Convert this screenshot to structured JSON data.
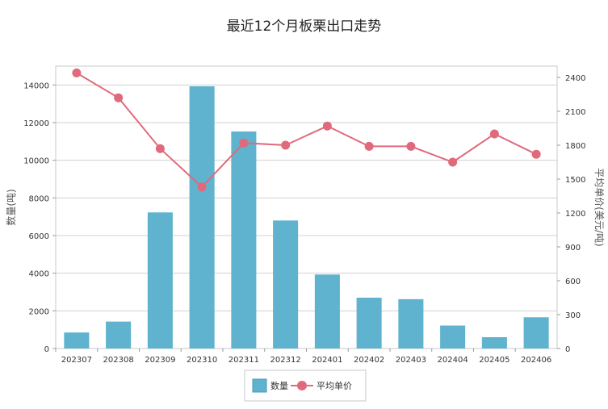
{
  "chart_data": {
    "type": "bar+line",
    "title": "最近12个月板栗出口走势",
    "categories": [
      "202307",
      "202308",
      "202309",
      "202310",
      "202311",
      "202312",
      "202401",
      "202402",
      "202403",
      "202404",
      "202405",
      "202406"
    ],
    "series": [
      {
        "name": "数量",
        "type": "bar",
        "axis": "left",
        "color": "#5fb3ce",
        "values": [
          850,
          1430,
          7230,
          13930,
          11530,
          6800,
          3930,
          2700,
          2620,
          1220,
          600,
          1660
        ]
      },
      {
        "name": "平均单价",
        "type": "line",
        "axis": "right",
        "color": "#e06a7c",
        "values": [
          2440,
          2220,
          1770,
          1430,
          1820,
          1800,
          1970,
          1790,
          1790,
          1650,
          1900,
          1720
        ]
      }
    ],
    "ylabel_left": "数量(吨)",
    "ylabel_right": "平均单价(美元/吨)",
    "ylim_left": [
      0,
      15000
    ],
    "yticks_left": [
      0,
      2000,
      4000,
      6000,
      8000,
      10000,
      12000,
      14000
    ],
    "ylim_right": [
      0,
      2500
    ],
    "yticks_right": [
      0,
      300,
      600,
      900,
      1200,
      1500,
      1800,
      2100,
      2400
    ],
    "grid": true,
    "legend": "bottom-center"
  }
}
